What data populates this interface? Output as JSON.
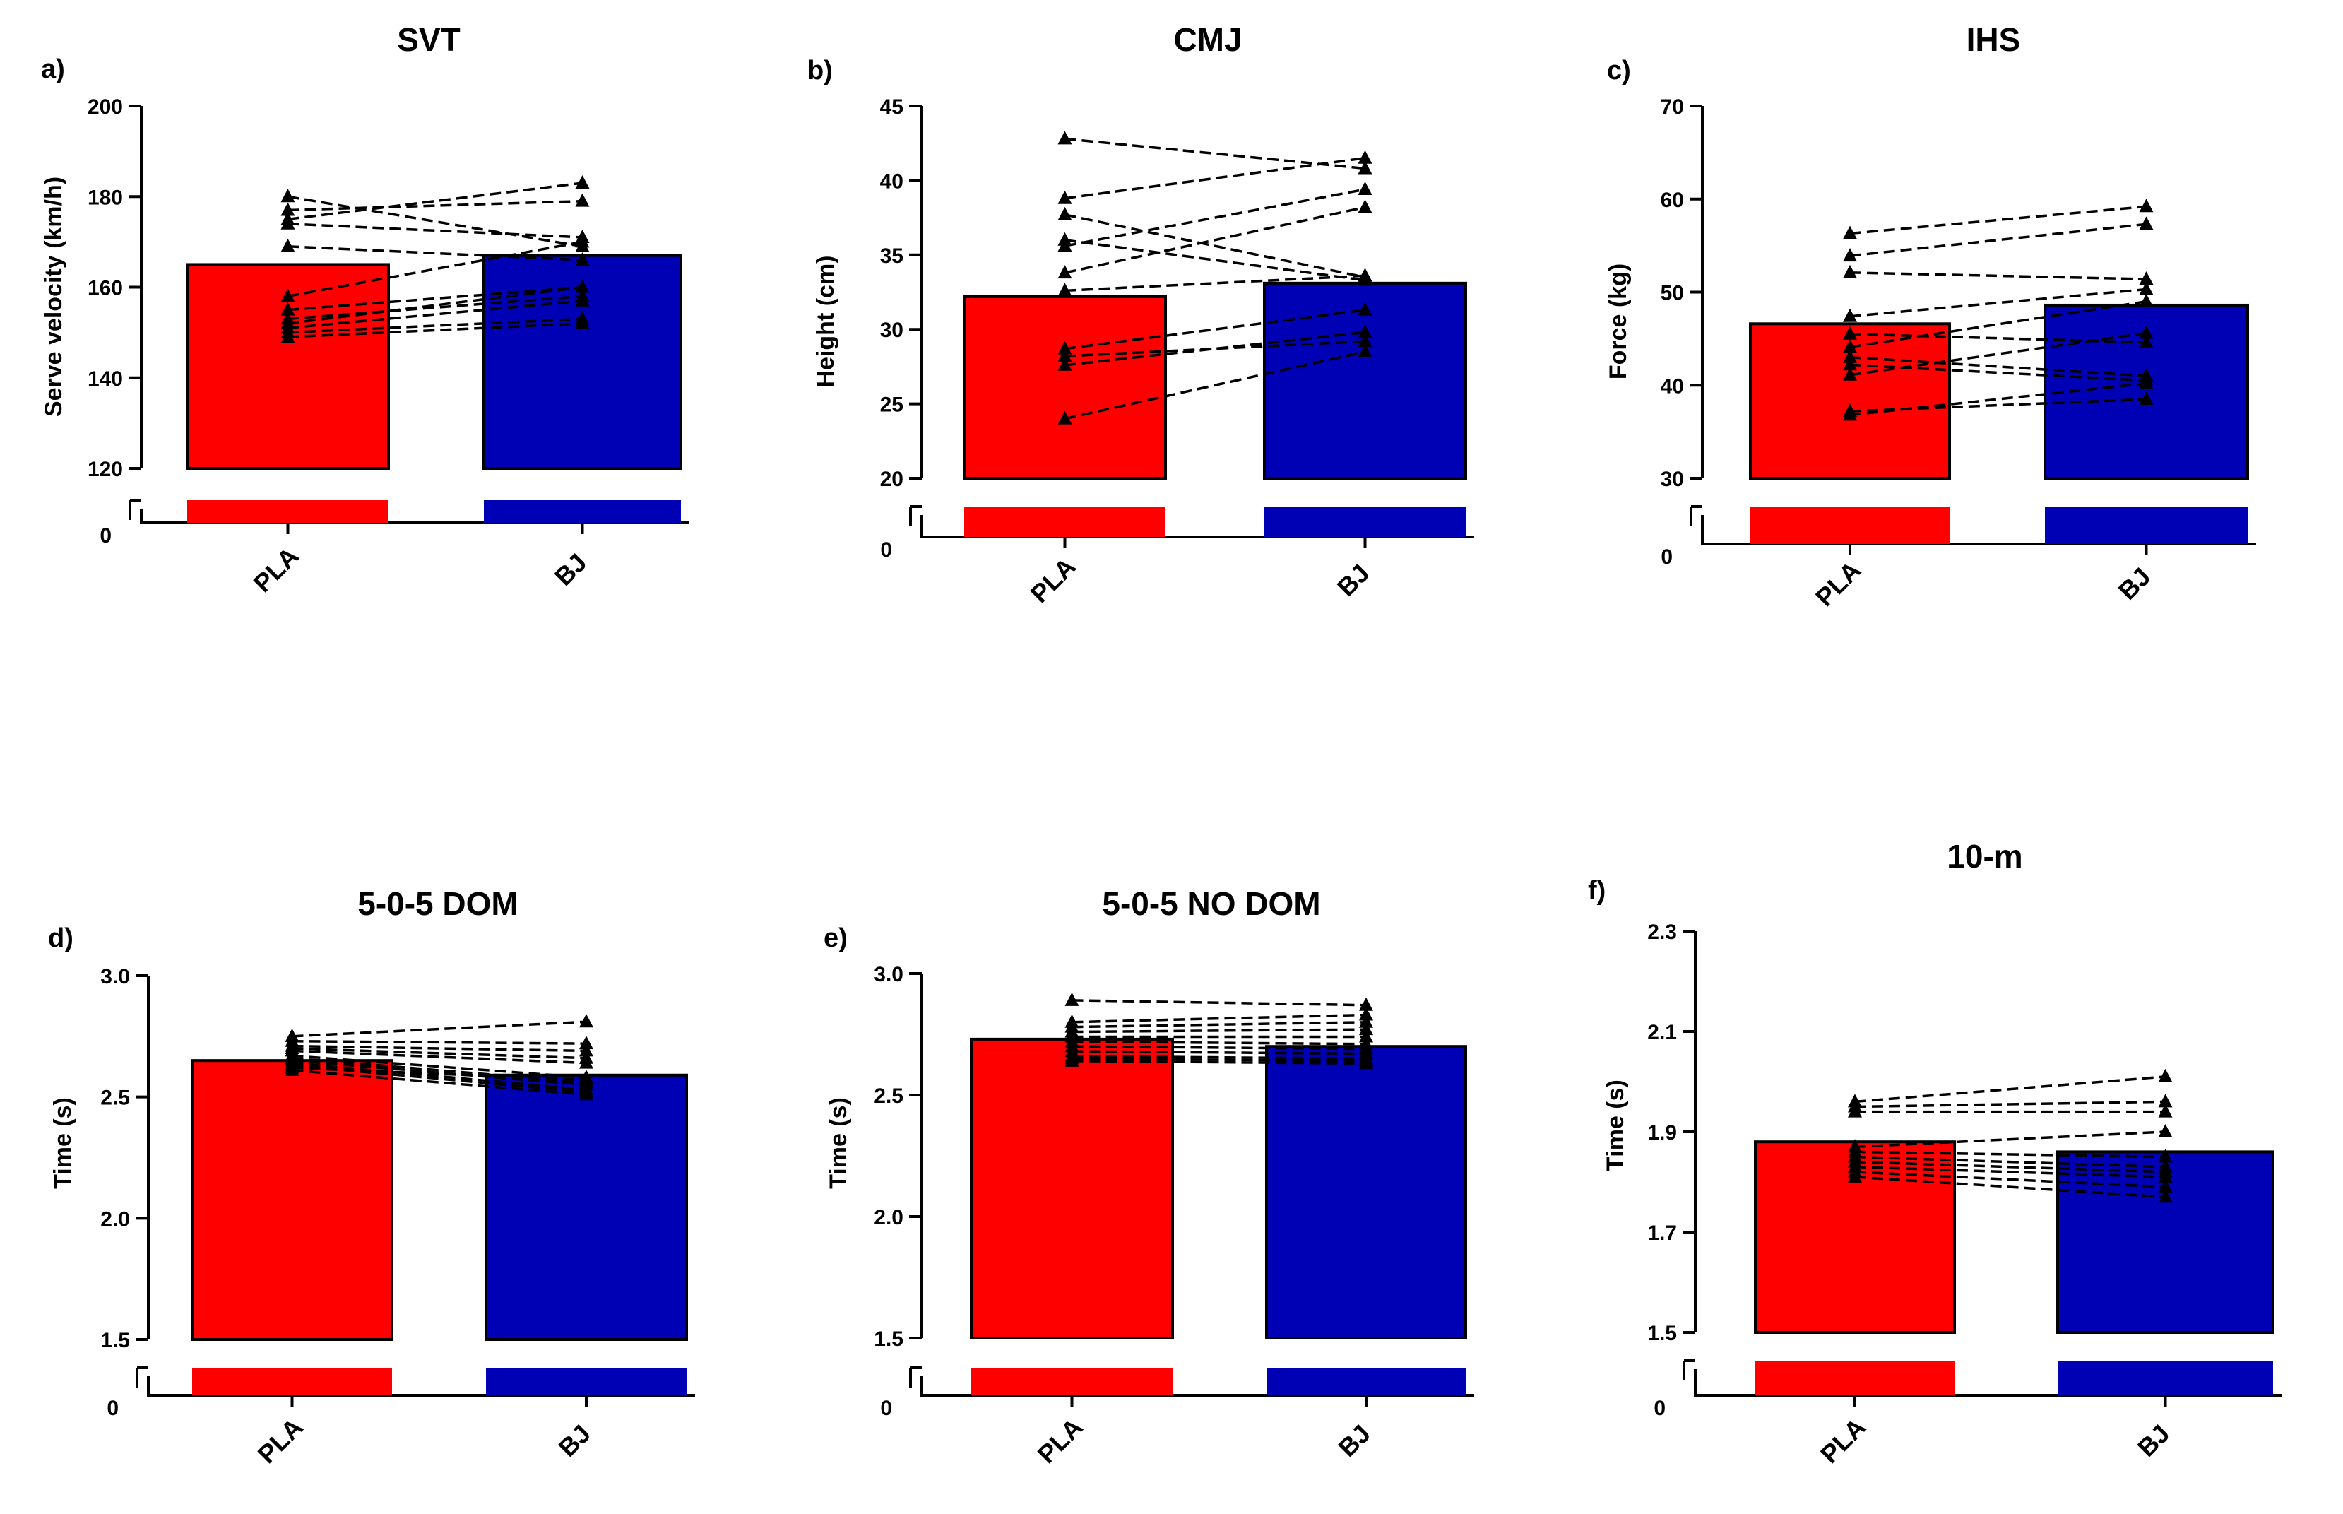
{
  "colors": {
    "PLA": "#ff0000",
    "BJ": "#0000b4",
    "line": "#000000"
  },
  "chart_data": [
    {
      "type": "bar",
      "id": "svt",
      "panel_label": "a)",
      "title": "SVT",
      "ylabel": "Serve velocity (km/h)",
      "categories": [
        "PLA",
        "BJ"
      ],
      "values": [
        165,
        167
      ],
      "ylim": [
        120,
        200
      ],
      "yticks": [
        "200",
        "180",
        "160",
        "140",
        "120"
      ],
      "zero_label": "0",
      "pairs": [
        [
          180,
          169
        ],
        [
          177,
          179
        ],
        [
          175,
          183
        ],
        [
          174,
          171
        ],
        [
          169,
          166
        ],
        [
          158,
          170
        ],
        [
          155,
          160
        ],
        [
          153,
          158
        ],
        [
          152,
          160
        ],
        [
          151,
          157
        ],
        [
          150,
          153
        ],
        [
          149,
          152
        ]
      ]
    },
    {
      "type": "bar",
      "id": "cmj",
      "panel_label": "b)",
      "title": "CMJ",
      "ylabel": "Height (cm)",
      "categories": [
        "PLA",
        "BJ"
      ],
      "values": [
        32.2,
        33.1
      ],
      "ylim": [
        20,
        45
      ],
      "yticks": [
        "45",
        "40",
        "35",
        "30",
        "25",
        "20"
      ],
      "zero_label": "0",
      "pairs": [
        [
          42.8,
          40.8
        ],
        [
          38.8,
          41.5
        ],
        [
          37.7,
          33.5
        ],
        [
          36.0,
          33.3
        ],
        [
          35.6,
          39.4
        ],
        [
          33.8,
          38.2
        ],
        [
          32.6,
          33.6
        ],
        [
          28.7,
          31.3
        ],
        [
          28.2,
          29.2
        ],
        [
          27.6,
          29.8
        ],
        [
          24.0,
          28.5
        ]
      ]
    },
    {
      "type": "bar",
      "id": "ihs",
      "panel_label": "c)",
      "title": "IHS",
      "ylabel": "Force (kg)",
      "categories": [
        "PLA",
        "BJ"
      ],
      "values": [
        46.6,
        48.6
      ],
      "ylim": [
        30,
        70
      ],
      "yticks": [
        "70",
        "60",
        "50",
        "40",
        "30"
      ],
      "zero_label": "0",
      "pairs": [
        [
          56.3,
          59.2
        ],
        [
          53.9,
          57.3
        ],
        [
          52.1,
          51.4
        ],
        [
          47.4,
          50.3
        ],
        [
          45.5,
          44.6
        ],
        [
          44.1,
          49.0
        ],
        [
          43.0,
          41.0
        ],
        [
          42.2,
          40.5
        ],
        [
          41.1,
          45.6
        ],
        [
          37.2,
          38.5
        ],
        [
          36.8,
          40.2
        ]
      ]
    },
    {
      "type": "bar",
      "id": "dom",
      "panel_label": "d)",
      "title": "5-0-5 DOM",
      "ylabel": "Time (s)",
      "categories": [
        "PLA",
        "BJ"
      ],
      "values": [
        2.65,
        2.59
      ],
      "ylim": [
        1.5,
        3.0
      ],
      "yticks": [
        "3.0",
        "2.5",
        "2.0",
        "1.5"
      ],
      "zero_label": "0",
      "pairs": [
        [
          2.75,
          2.81
        ],
        [
          2.73,
          2.72
        ],
        [
          2.71,
          2.69
        ],
        [
          2.7,
          2.66
        ],
        [
          2.69,
          2.64
        ],
        [
          2.67,
          2.58
        ],
        [
          2.66,
          2.56
        ],
        [
          2.65,
          2.55
        ],
        [
          2.64,
          2.53
        ],
        [
          2.63,
          2.52
        ],
        [
          2.62,
          2.57
        ],
        [
          2.61,
          2.51
        ]
      ]
    },
    {
      "type": "bar",
      "id": "nodom",
      "panel_label": "e)",
      "title": "5-0-5 NO DOM",
      "ylabel": "Time (s)",
      "categories": [
        "PLA",
        "BJ"
      ],
      "values": [
        2.73,
        2.7
      ],
      "ylim": [
        1.5,
        3.0
      ],
      "yticks": [
        "3.0",
        "2.5",
        "2.0",
        "1.5"
      ],
      "zero_label": "0",
      "pairs": [
        [
          2.89,
          2.87
        ],
        [
          2.8,
          2.83
        ],
        [
          2.78,
          2.8
        ],
        [
          2.76,
          2.77
        ],
        [
          2.74,
          2.74
        ],
        [
          2.72,
          2.71
        ],
        [
          2.7,
          2.69
        ],
        [
          2.68,
          2.67
        ],
        [
          2.66,
          2.65
        ],
        [
          2.65,
          2.64
        ],
        [
          2.64,
          2.63
        ]
      ]
    },
    {
      "type": "bar",
      "id": "tenm",
      "panel_label": "f)",
      "title": "10-m",
      "ylabel": "Time (s)",
      "categories": [
        "PLA",
        "BJ"
      ],
      "values": [
        1.88,
        1.86
      ],
      "ylim": [
        1.5,
        2.3
      ],
      "yticks": [
        "2.3",
        "2.1",
        "1.9",
        "1.7",
        "1.5"
      ],
      "zero_label": "0",
      "pairs": [
        [
          1.96,
          2.01
        ],
        [
          1.95,
          1.96
        ],
        [
          1.94,
          1.94
        ],
        [
          1.87,
          1.9
        ],
        [
          1.86,
          1.85
        ],
        [
          1.85,
          1.83
        ],
        [
          1.84,
          1.82
        ],
        [
          1.83,
          1.81
        ],
        [
          1.82,
          1.79
        ],
        [
          1.81,
          1.77
        ]
      ]
    }
  ]
}
